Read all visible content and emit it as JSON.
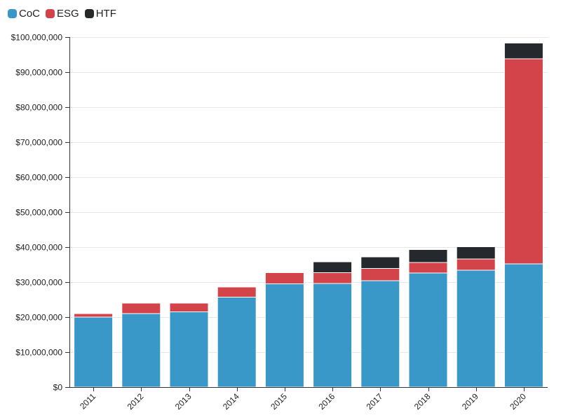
{
  "colors": {
    "CoC": "#3a98c9",
    "ESG": "#d3434a",
    "HTF": "#25292d",
    "grid": "#e6e6e6",
    "axis": "#333333"
  },
  "legend": {
    "items": [
      {
        "label": "CoC",
        "color": "#3a98c9"
      },
      {
        "label": "ESG",
        "color": "#d3434a"
      },
      {
        "label": "HTF",
        "color": "#25292d"
      }
    ]
  },
  "chart_data": {
    "type": "bar",
    "stacked": true,
    "title": "",
    "xlabel": "",
    "ylabel": "",
    "categories": [
      "2011",
      "2012",
      "2013",
      "2014",
      "2015",
      "2016",
      "2017",
      "2018",
      "2019",
      "2020"
    ],
    "series": [
      {
        "name": "CoC",
        "values": [
          20000000,
          21000000,
          21500000,
          25700000,
          29500000,
          29600000,
          30400000,
          32600000,
          33400000,
          35200000
        ]
      },
      {
        "name": "ESG",
        "values": [
          1000000,
          3000000,
          2500000,
          2900000,
          3200000,
          3100000,
          3500000,
          3000000,
          3200000,
          58600000
        ]
      },
      {
        "name": "HTF",
        "values": [
          0,
          0,
          0,
          0,
          0,
          3100000,
          3300000,
          3700000,
          3500000,
          4500000
        ]
      }
    ],
    "ylim": [
      0,
      100000000
    ],
    "yticks": [
      0,
      10000000,
      20000000,
      30000000,
      40000000,
      50000000,
      60000000,
      70000000,
      80000000,
      90000000,
      100000000
    ],
    "ytick_labels": [
      "$0",
      "$10,000,000",
      "$20,000,000",
      "$30,000,000",
      "$40,000,000",
      "$50,000,000",
      "$60,000,000",
      "$70,000,000",
      "$80,000,000",
      "$90,000,000",
      "$100,000,000"
    ],
    "grid": true,
    "legend_position": "top-left"
  }
}
